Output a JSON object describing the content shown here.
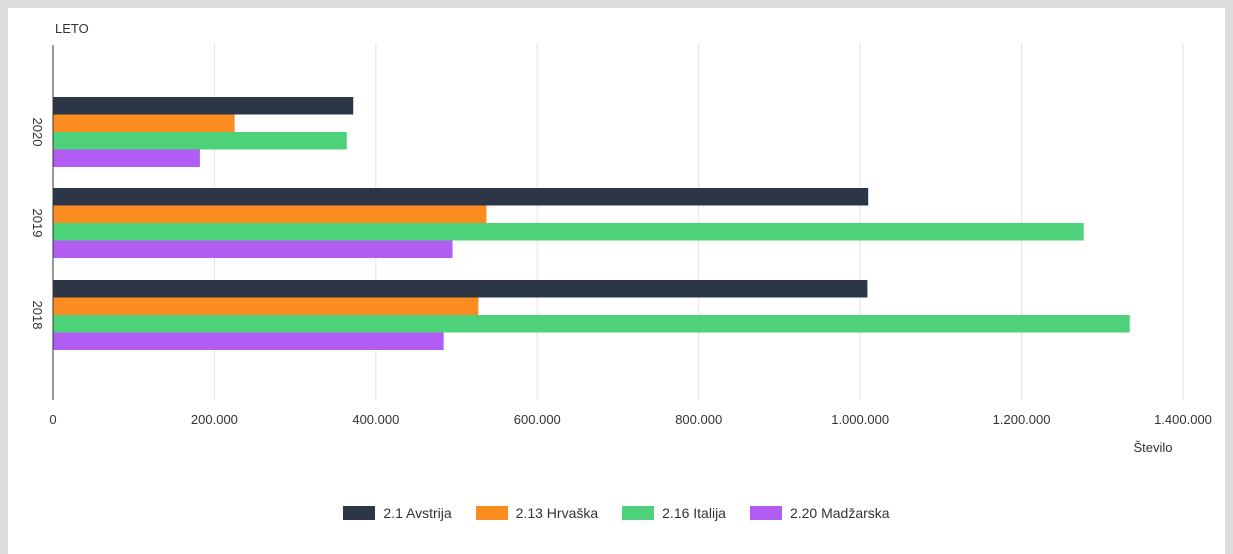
{
  "chart_data": {
    "type": "bar",
    "orientation": "horizontal",
    "y_axis_title": "LETO",
    "x_axis_title": "Število",
    "categories": [
      "2020",
      "2019",
      "2018"
    ],
    "series": [
      {
        "name": "2.1 Avstrija",
        "color": "#2c3646",
        "values": [
          372000,
          1010000,
          1009000
        ]
      },
      {
        "name": "2.13 Hrvaška",
        "color": "#fb8c1f",
        "values": [
          225000,
          537000,
          527000
        ]
      },
      {
        "name": "2.16 Italija",
        "color": "#4dd27a",
        "values": [
          364000,
          1277000,
          1334000
        ]
      },
      {
        "name": "2.20 Madžarska",
        "color": "#b15cf2",
        "values": [
          182000,
          495000,
          484000
        ]
      }
    ],
    "xlim": [
      0,
      1400000
    ],
    "x_ticks": [
      0,
      200000,
      400000,
      600000,
      800000,
      1000000,
      1200000,
      1400000
    ],
    "x_tick_labels": [
      "0",
      "200.000",
      "400.000",
      "600.000",
      "800.000",
      "1.000.000",
      "1.200.000",
      "1.400.000"
    ],
    "grid": "vertical",
    "legend_position": "bottom"
  }
}
